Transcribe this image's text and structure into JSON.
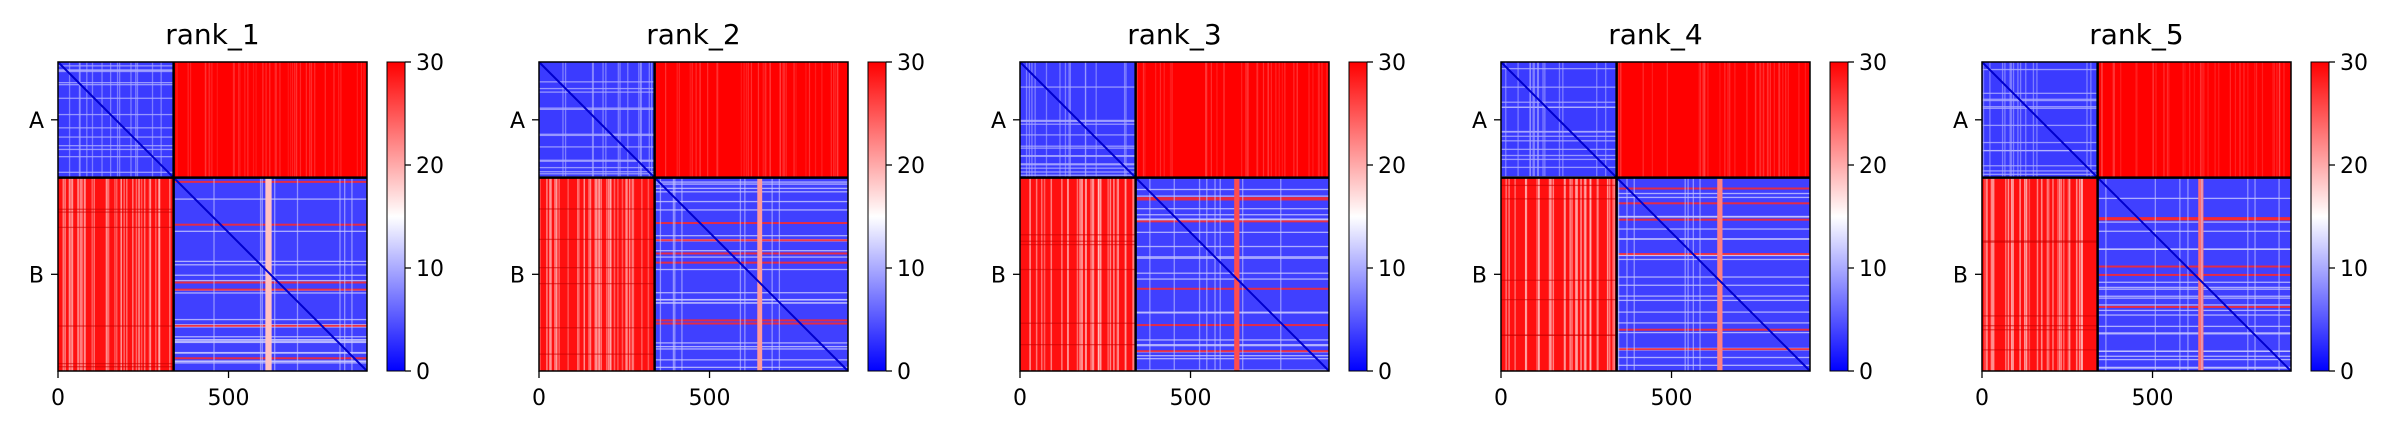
{
  "chart_data": [
    {
      "type": "heatmap",
      "title": "rank_1",
      "xlabel": "",
      "ylabel": "",
      "x_ticks": [
        0,
        500
      ],
      "y_tick_labels": [
        "A",
        "B"
      ],
      "chain_boundary": 339,
      "n_residues": 906,
      "colorbar": {
        "ticks": [
          0,
          10,
          20,
          30
        ],
        "range": [
          0,
          30
        ],
        "colormap": "bwr"
      },
      "colors": {
        "low": "#0000ff",
        "mid": "#ffffff",
        "high": "#ff0000"
      },
      "stripes": [
        608,
        612,
        617
      ],
      "stripe_level": 0.62
    },
    {
      "type": "heatmap",
      "title": "rank_2",
      "xlabel": "",
      "ylabel": "",
      "x_ticks": [
        0,
        500
      ],
      "y_tick_labels": [
        "A",
        "B"
      ],
      "chain_boundary": 339,
      "n_residues": 906,
      "colorbar": {
        "ticks": [
          0,
          10,
          20,
          30
        ],
        "range": [
          0,
          30
        ],
        "colormap": "bwr"
      },
      "colors": {
        "low": "#0000ff",
        "mid": "#ffffff",
        "high": "#ff0000"
      },
      "stripes": [
        640,
        645
      ],
      "stripe_level": 0.7
    },
    {
      "type": "heatmap",
      "title": "rank_3",
      "xlabel": "",
      "ylabel": "",
      "x_ticks": [
        0,
        500
      ],
      "y_tick_labels": [
        "A",
        "B"
      ],
      "chain_boundary": 339,
      "n_residues": 906,
      "colorbar": {
        "ticks": [
          0,
          10,
          20,
          30
        ],
        "range": [
          0,
          30
        ],
        "colormap": "bwr"
      },
      "colors": {
        "low": "#0000ff",
        "mid": "#ffffff",
        "high": "#ff0000"
      },
      "stripes": [
        628,
        634
      ],
      "stripe_level": 0.85
    },
    {
      "type": "heatmap",
      "title": "rank_4",
      "xlabel": "",
      "ylabel": "",
      "x_ticks": [
        0,
        500
      ],
      "y_tick_labels": [
        "A",
        "B"
      ],
      "chain_boundary": 339,
      "n_residues": 906,
      "colorbar": {
        "ticks": [
          0,
          10,
          20,
          30
        ],
        "range": [
          0,
          30
        ],
        "colormap": "bwr"
      },
      "colors": {
        "low": "#0000ff",
        "mid": "#ffffff",
        "high": "#ff0000"
      },
      "stripes": [
        634,
        640
      ],
      "stripe_level": 0.75
    },
    {
      "type": "heatmap",
      "title": "rank_5",
      "xlabel": "",
      "ylabel": "",
      "x_ticks": [
        0,
        500
      ],
      "y_tick_labels": [
        "A",
        "B"
      ],
      "chain_boundary": 339,
      "n_residues": 906,
      "colorbar": {
        "ticks": [
          0,
          10,
          20,
          30
        ],
        "range": [
          0,
          30
        ],
        "colormap": "bwr"
      },
      "colors": {
        "low": "#0000ff",
        "mid": "#ffffff",
        "high": "#ff0000"
      },
      "stripes": [
        634,
        640
      ],
      "stripe_level": 0.78
    }
  ]
}
